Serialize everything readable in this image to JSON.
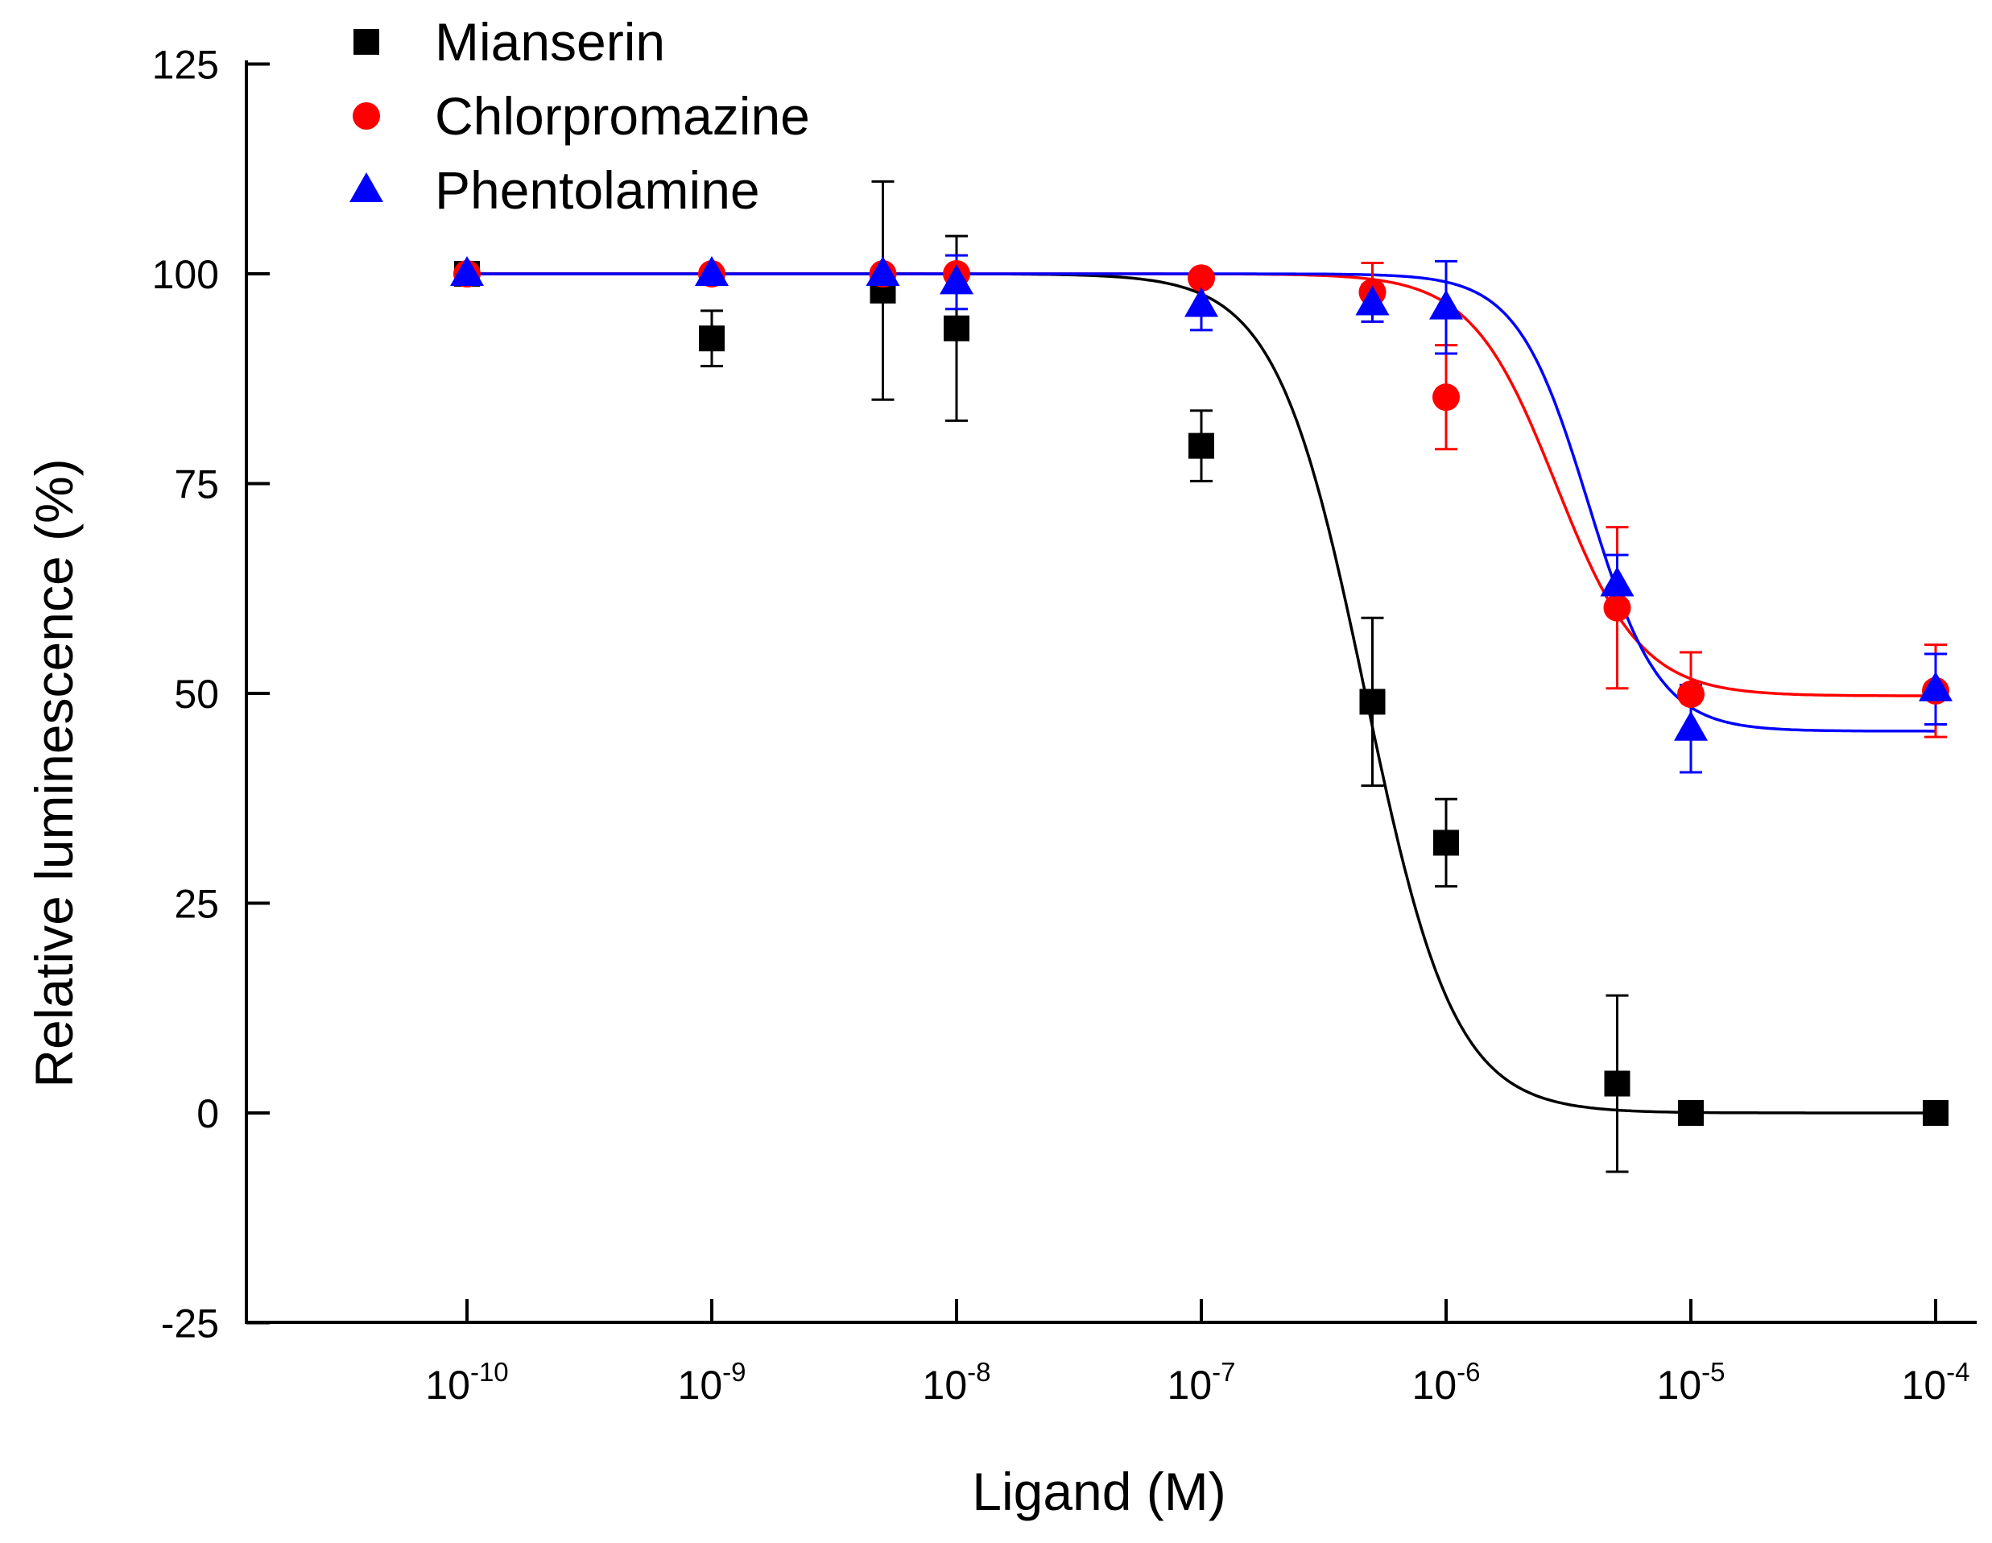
{
  "chart_data": {
    "type": "scatter",
    "title": "",
    "xlabel": "Ligand (M)",
    "ylabel": "Relative luminescence (%)",
    "x_scale": "log10",
    "xlim": [
      -10.9,
      -4
    ],
    "ylim": [
      -25,
      125
    ],
    "x_ticks": [
      {
        "value": -10,
        "base": "10",
        "exp": "-10"
      },
      {
        "value": -9,
        "base": "10",
        "exp": "-9"
      },
      {
        "value": -8,
        "base": "10",
        "exp": "-8"
      },
      {
        "value": -7,
        "base": "10",
        "exp": "-7"
      },
      {
        "value": -6,
        "base": "10",
        "exp": "-6"
      },
      {
        "value": -5,
        "base": "10",
        "exp": "-5"
      },
      {
        "value": -4,
        "base": "10",
        "exp": "-4"
      }
    ],
    "y_ticks": [
      "125",
      "100",
      "75",
      "50",
      "25",
      "0",
      "-25"
    ],
    "legend_position": "top-left",
    "series": [
      {
        "name": "Mianserin",
        "color": "#000000",
        "marker": "square",
        "x_log": [
          -10,
          -9,
          -8.301,
          -8,
          -7,
          -6.301,
          -6,
          -5.301,
          -5,
          -4
        ],
        "y": [
          100,
          92.3,
          98,
          93.5,
          79.5,
          49,
          32.2,
          3.5,
          0,
          0
        ],
        "err": [
          0,
          3.3,
          13,
          11,
          4.2,
          10,
          5.2,
          10.5,
          0,
          0
        ],
        "fit": {
          "top": 100,
          "bottom": 0,
          "log_ic50": -6.33,
          "hill": 2.4
        }
      },
      {
        "name": "Chlorpromazine",
        "color": "#ff0000",
        "marker": "circle",
        "x_log": [
          -10,
          -9,
          -8.301,
          -8,
          -7,
          -6.301,
          -6,
          -5.301,
          -5,
          -4
        ],
        "y": [
          100,
          100,
          100,
          100,
          99.5,
          97.8,
          85.3,
          60.2,
          49.9,
          50.3
        ],
        "err": [
          0,
          0,
          0,
          0,
          0,
          3.5,
          6.2,
          9.6,
          5,
          5.5
        ],
        "fit": {
          "top": 100,
          "bottom": 49.7,
          "log_ic50": -5.55,
          "hill": 2.5
        }
      },
      {
        "name": "Phentolamine",
        "color": "#0000ff",
        "marker": "triangle",
        "x_log": [
          -10,
          -9,
          -8.301,
          -8,
          -7,
          -6.301,
          -6,
          -5.301,
          -5,
          -4
        ],
        "y": [
          100,
          100,
          100,
          99,
          96.3,
          96.5,
          96,
          63,
          45.8,
          50.5
        ],
        "err": [
          0,
          0,
          0,
          3.2,
          3,
          2.2,
          5.5,
          3.5,
          5.2,
          4.2
        ],
        "fit": {
          "top": 100,
          "bottom": 45.5,
          "log_ic50": -5.42,
          "hill": 3.0
        }
      }
    ]
  }
}
